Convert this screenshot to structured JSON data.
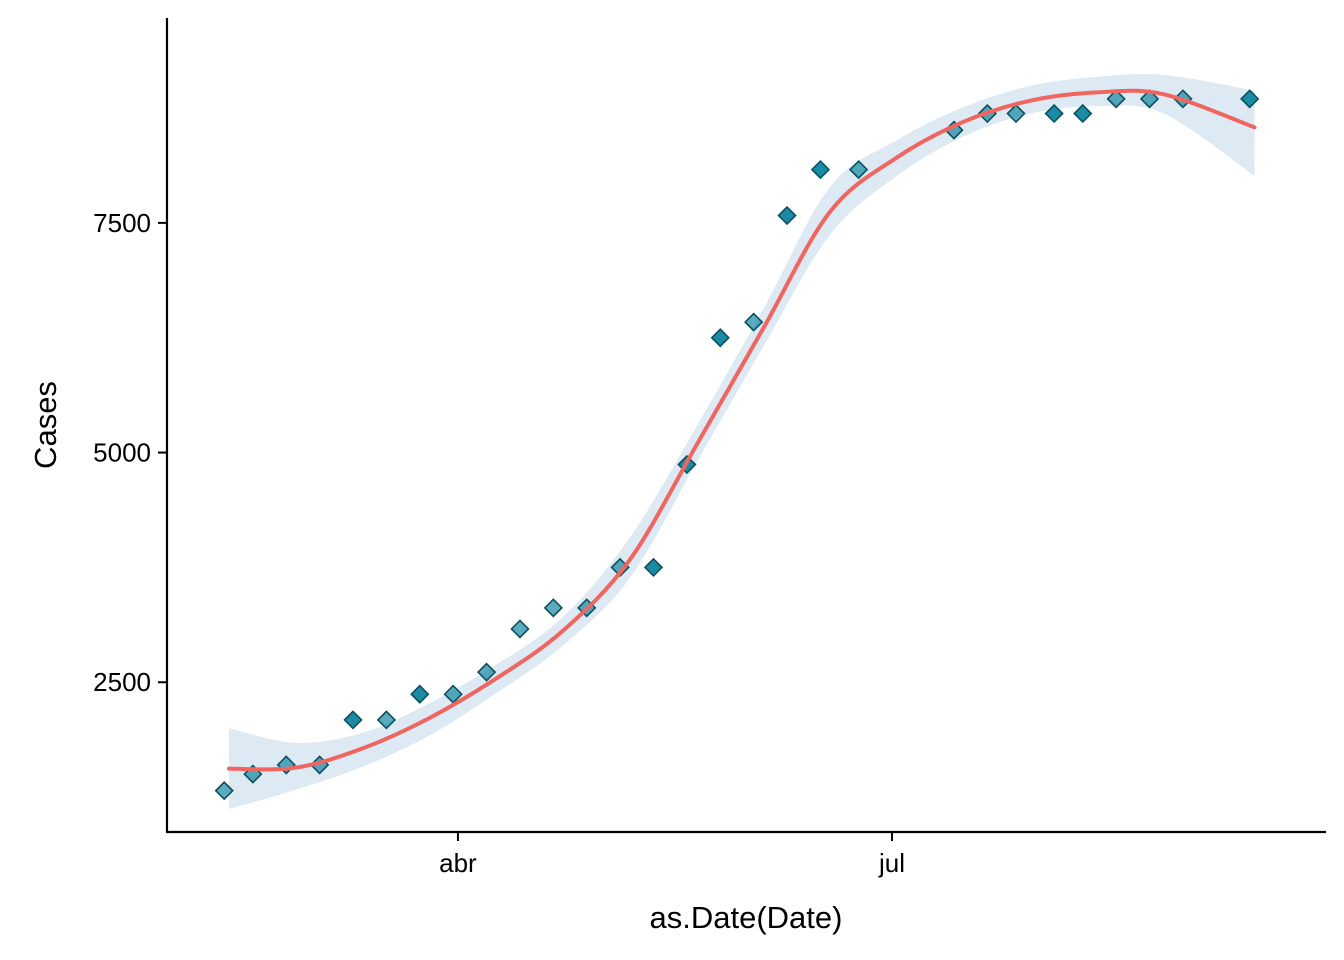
{
  "chart_data": {
    "type": "scatter",
    "title": "",
    "xlabel": "as.Date(Date)",
    "ylabel": "Cases",
    "x_ticks": [
      {
        "date": "2020-04-01",
        "label": "abr"
      },
      {
        "date": "2020-07-01",
        "label": "jul"
      }
    ],
    "y_ticks": [
      2500,
      5000,
      7500
    ],
    "xlim": [
      "2020-01-31",
      "2020-09-30"
    ],
    "ylim": [
      870,
      9730
    ],
    "grid": false,
    "legend": "none",
    "colors": {
      "points_fill": "#1b8ba3",
      "points_edge": "#0d4f5e",
      "smooth_line": "#f0655f",
      "ribbon": "#dde9f3"
    },
    "points": [
      {
        "date": "2020-02-12",
        "value": 1320,
        "solid": false
      },
      {
        "date": "2020-02-18",
        "value": 1500,
        "solid": false
      },
      {
        "date": "2020-02-25",
        "value": 1600,
        "solid": false
      },
      {
        "date": "2020-03-03",
        "value": 1600,
        "solid": false
      },
      {
        "date": "2020-03-10",
        "value": 2090,
        "solid": true
      },
      {
        "date": "2020-03-17",
        "value": 2090,
        "solid": false
      },
      {
        "date": "2020-03-24",
        "value": 2370,
        "solid": true
      },
      {
        "date": "2020-03-31",
        "value": 2370,
        "solid": false
      },
      {
        "date": "2020-04-07",
        "value": 2610,
        "solid": false
      },
      {
        "date": "2020-04-14",
        "value": 3080,
        "solid": false
      },
      {
        "date": "2020-04-21",
        "value": 3310,
        "solid": false
      },
      {
        "date": "2020-04-28",
        "value": 3310,
        "solid": false
      },
      {
        "date": "2020-05-05",
        "value": 3750,
        "solid": false
      },
      {
        "date": "2020-05-12",
        "value": 3750,
        "solid": true
      },
      {
        "date": "2020-05-19",
        "value": 4870,
        "solid": true
      },
      {
        "date": "2020-05-26",
        "value": 6250,
        "solid": true
      },
      {
        "date": "2020-06-02",
        "value": 6420,
        "solid": false
      },
      {
        "date": "2020-06-09",
        "value": 7580,
        "solid": true
      },
      {
        "date": "2020-06-16",
        "value": 8080,
        "solid": true
      },
      {
        "date": "2020-06-24",
        "value": 8080,
        "solid": false
      },
      {
        "date": "2020-07-14",
        "value": 8510,
        "solid": false
      },
      {
        "date": "2020-07-21",
        "value": 8690,
        "solid": false
      },
      {
        "date": "2020-07-27",
        "value": 8690,
        "solid": false
      },
      {
        "date": "2020-08-04",
        "value": 8690,
        "solid": true
      },
      {
        "date": "2020-08-10",
        "value": 8690,
        "solid": true
      },
      {
        "date": "2020-08-17",
        "value": 8850,
        "solid": false
      },
      {
        "date": "2020-08-24",
        "value": 8850,
        "solid": false
      },
      {
        "date": "2020-08-31",
        "value": 8850,
        "solid": false
      },
      {
        "date": "2020-09-14",
        "value": 8850,
        "solid": true
      }
    ],
    "smooth": [
      {
        "date": "2020-02-13",
        "fit": 1560,
        "lower": 1120,
        "upper": 2000
      },
      {
        "date": "2020-02-27",
        "fit": 1570,
        "lower": 1330,
        "upper": 1840
      },
      {
        "date": "2020-03-12",
        "fit": 1780,
        "lower": 1580,
        "upper": 1950
      },
      {
        "date": "2020-03-26",
        "fit": 2110,
        "lower": 1920,
        "upper": 2270
      },
      {
        "date": "2020-04-09",
        "fit": 2540,
        "lower": 2380,
        "upper": 2690
      },
      {
        "date": "2020-04-23",
        "fit": 3060,
        "lower": 2900,
        "upper": 3210
      },
      {
        "date": "2020-05-07",
        "fit": 3830,
        "lower": 3630,
        "upper": 4070
      },
      {
        "date": "2020-05-21",
        "fit": 5080,
        "lower": 4890,
        "upper": 5280
      },
      {
        "date": "2020-06-04",
        "fit": 6350,
        "lower": 6150,
        "upper": 6560
      },
      {
        "date": "2020-06-18",
        "fit": 7620,
        "lower": 7370,
        "upper": 7890
      },
      {
        "date": "2020-07-02",
        "fit": 8210,
        "lower": 8010,
        "upper": 8400
      },
      {
        "date": "2020-07-16",
        "fit": 8600,
        "lower": 8440,
        "upper": 8760
      },
      {
        "date": "2020-07-30",
        "fit": 8830,
        "lower": 8690,
        "upper": 8990
      },
      {
        "date": "2020-08-13",
        "fit": 8920,
        "lower": 8770,
        "upper": 9090
      },
      {
        "date": "2020-08-27",
        "fit": 8900,
        "lower": 8690,
        "upper": 9110
      },
      {
        "date": "2020-09-15",
        "fit": 8540,
        "lower": 8010,
        "upper": 8940
      }
    ]
  }
}
